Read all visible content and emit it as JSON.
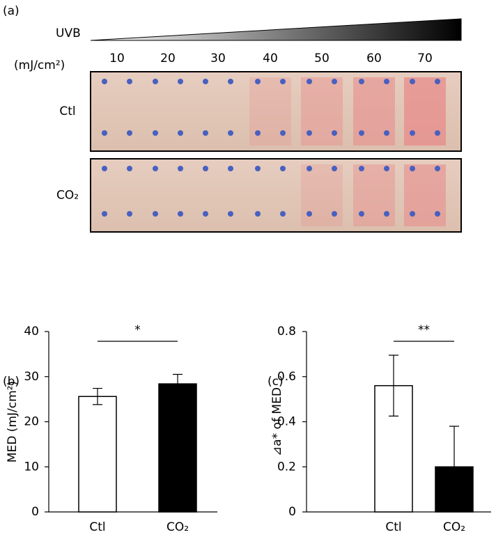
{
  "panel_a": {
    "label": "(a)",
    "dose_title": "UVB",
    "dose_unit": "(mJ/cm²)",
    "doses": [
      "10",
      "20",
      "30",
      "40",
      "50",
      "60",
      "70"
    ],
    "rows": [
      "Ctl",
      "CO₂"
    ]
  },
  "chart_data": [
    {
      "type": "bar",
      "panel_label": "(b)",
      "y_label": "MED (mJ/cm²)",
      "categories": [
        "Ctl",
        "CO₂"
      ],
      "values": [
        25.6,
        28.4
      ],
      "errors": [
        1.8,
        2.1
      ],
      "colors": [
        "#ffffff",
        "#000000"
      ],
      "ylim": [
        0,
        40
      ],
      "yticks": [
        0,
        10,
        20,
        30,
        40
      ],
      "significance": "*"
    },
    {
      "type": "bar",
      "panel_label": "(c)",
      "y_label": "⊿a* of MED",
      "categories": [
        "Ctl",
        "CO₂"
      ],
      "values": [
        0.56,
        0.2
      ],
      "errors": [
        0.135,
        0.18
      ],
      "colors": [
        "#ffffff",
        "#000000"
      ],
      "ylim": [
        0,
        0.8
      ],
      "yticks": [
        0,
        0.2,
        0.4,
        0.6,
        0.8
      ],
      "significance": "**"
    }
  ]
}
